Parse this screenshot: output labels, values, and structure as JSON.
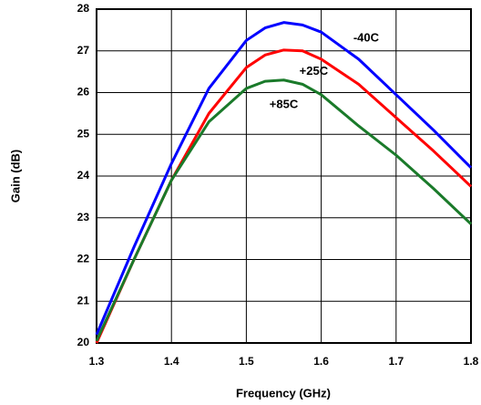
{
  "chart_data": {
    "type": "line",
    "xlabel": "Frequency (GHz)",
    "ylabel": "Gain (dB)",
    "x": [
      1.3,
      1.35,
      1.4,
      1.45,
      1.5,
      1.525,
      1.55,
      1.575,
      1.6,
      1.65,
      1.7,
      1.75,
      1.8
    ],
    "series": [
      {
        "name": "-40C",
        "color": "#0000ff",
        "values": [
          20.2,
          22.3,
          24.3,
          26.1,
          27.25,
          27.55,
          27.68,
          27.62,
          27.45,
          26.8,
          25.95,
          25.1,
          24.2
        ]
      },
      {
        "name": "+25C",
        "color": "#ff0000",
        "values": [
          20.0,
          22.0,
          23.9,
          25.5,
          26.6,
          26.9,
          27.02,
          27.0,
          26.8,
          26.2,
          25.4,
          24.6,
          23.75
        ]
      },
      {
        "name": "+85C",
        "color": "#1a7a2a",
        "values": [
          20.05,
          22.0,
          23.9,
          25.3,
          26.1,
          26.27,
          26.3,
          26.2,
          25.95,
          25.2,
          24.5,
          23.7,
          22.85
        ]
      }
    ],
    "xlim": [
      1.3,
      1.8
    ],
    "xticks": [
      1.3,
      1.4,
      1.5,
      1.6,
      1.7,
      1.8
    ],
    "ylim": [
      20,
      28
    ],
    "yticks": [
      20,
      21,
      22,
      23,
      24,
      25,
      26,
      27,
      28
    ],
    "grid": true
  }
}
